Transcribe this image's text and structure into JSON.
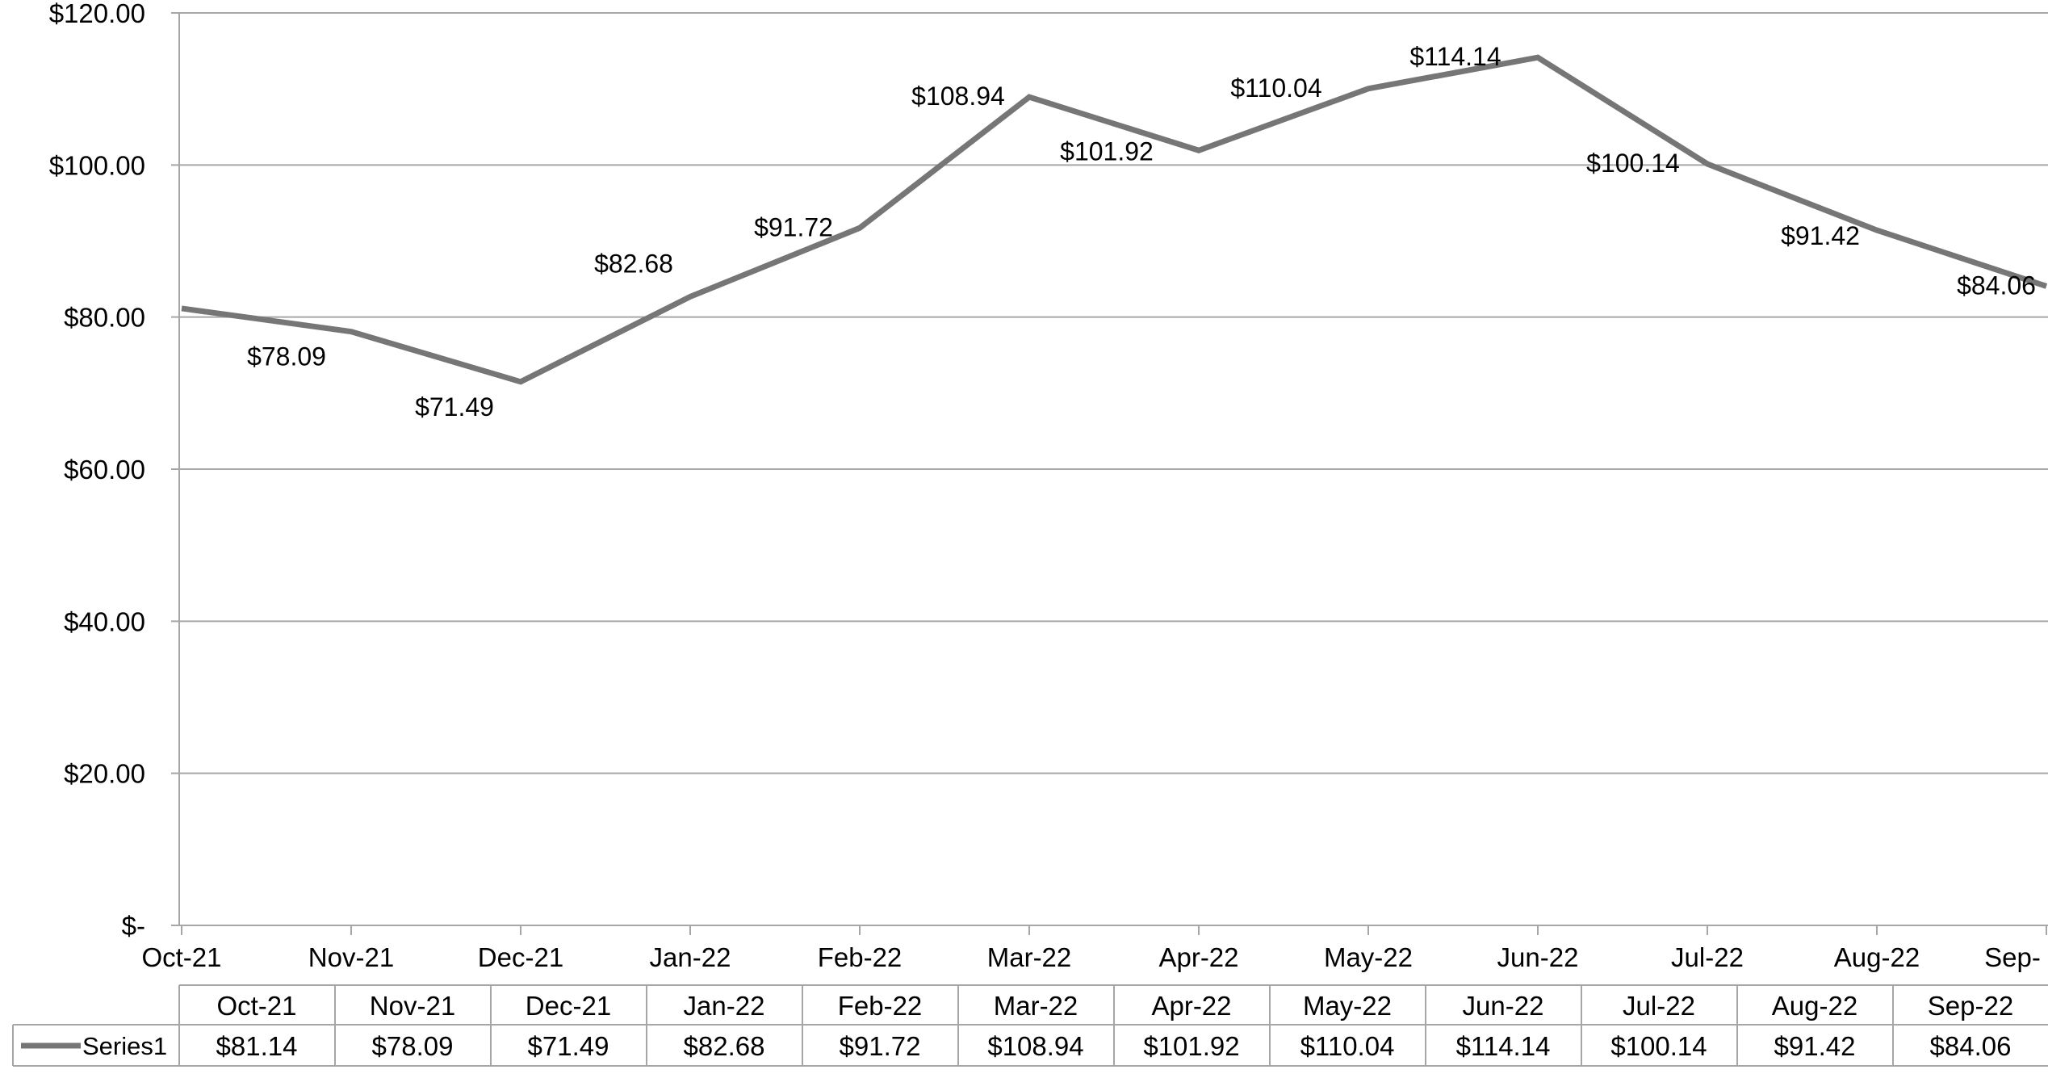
{
  "chart_data": {
    "type": "line",
    "title": "",
    "xlabel": "",
    "ylabel": "",
    "categories": [
      "Oct-21",
      "Nov-21",
      "Dec-21",
      "Jan-22",
      "Feb-22",
      "Mar-22",
      "Apr-22",
      "May-22",
      "Jun-22",
      "Jul-22",
      "Aug-22",
      "Sep-22"
    ],
    "x_tick_labels": [
      "Oct-21",
      "Nov-21",
      "Dec-21",
      "Jan-22",
      "Feb-22",
      "Mar-22",
      "Apr-22",
      "May-22",
      "Jun-22",
      "Jul-22",
      "Aug-22",
      "Sep-"
    ],
    "series": [
      {
        "name": "Series1",
        "values": [
          81.14,
          78.09,
          71.49,
          82.68,
          91.72,
          108.94,
          101.92,
          110.04,
          114.14,
          100.14,
          91.42,
          84.06
        ],
        "labels": [
          "$81.14",
          "$78.09",
          "$71.49",
          "$82.68",
          "$91.72",
          "$108.94",
          "$101.92",
          "$110.04",
          "$114.14",
          "$100.14",
          "$91.42",
          "$84.06"
        ],
        "color": "#767676"
      }
    ],
    "ylim": [
      0,
      120
    ],
    "y_tick_labels": [
      "$-",
      "$20.00",
      "$40.00",
      "$60.00",
      "$80.00",
      "$100.00",
      "$120.00"
    ],
    "grid": true,
    "data_table": true,
    "gridline_color": "#a6a6a6"
  }
}
